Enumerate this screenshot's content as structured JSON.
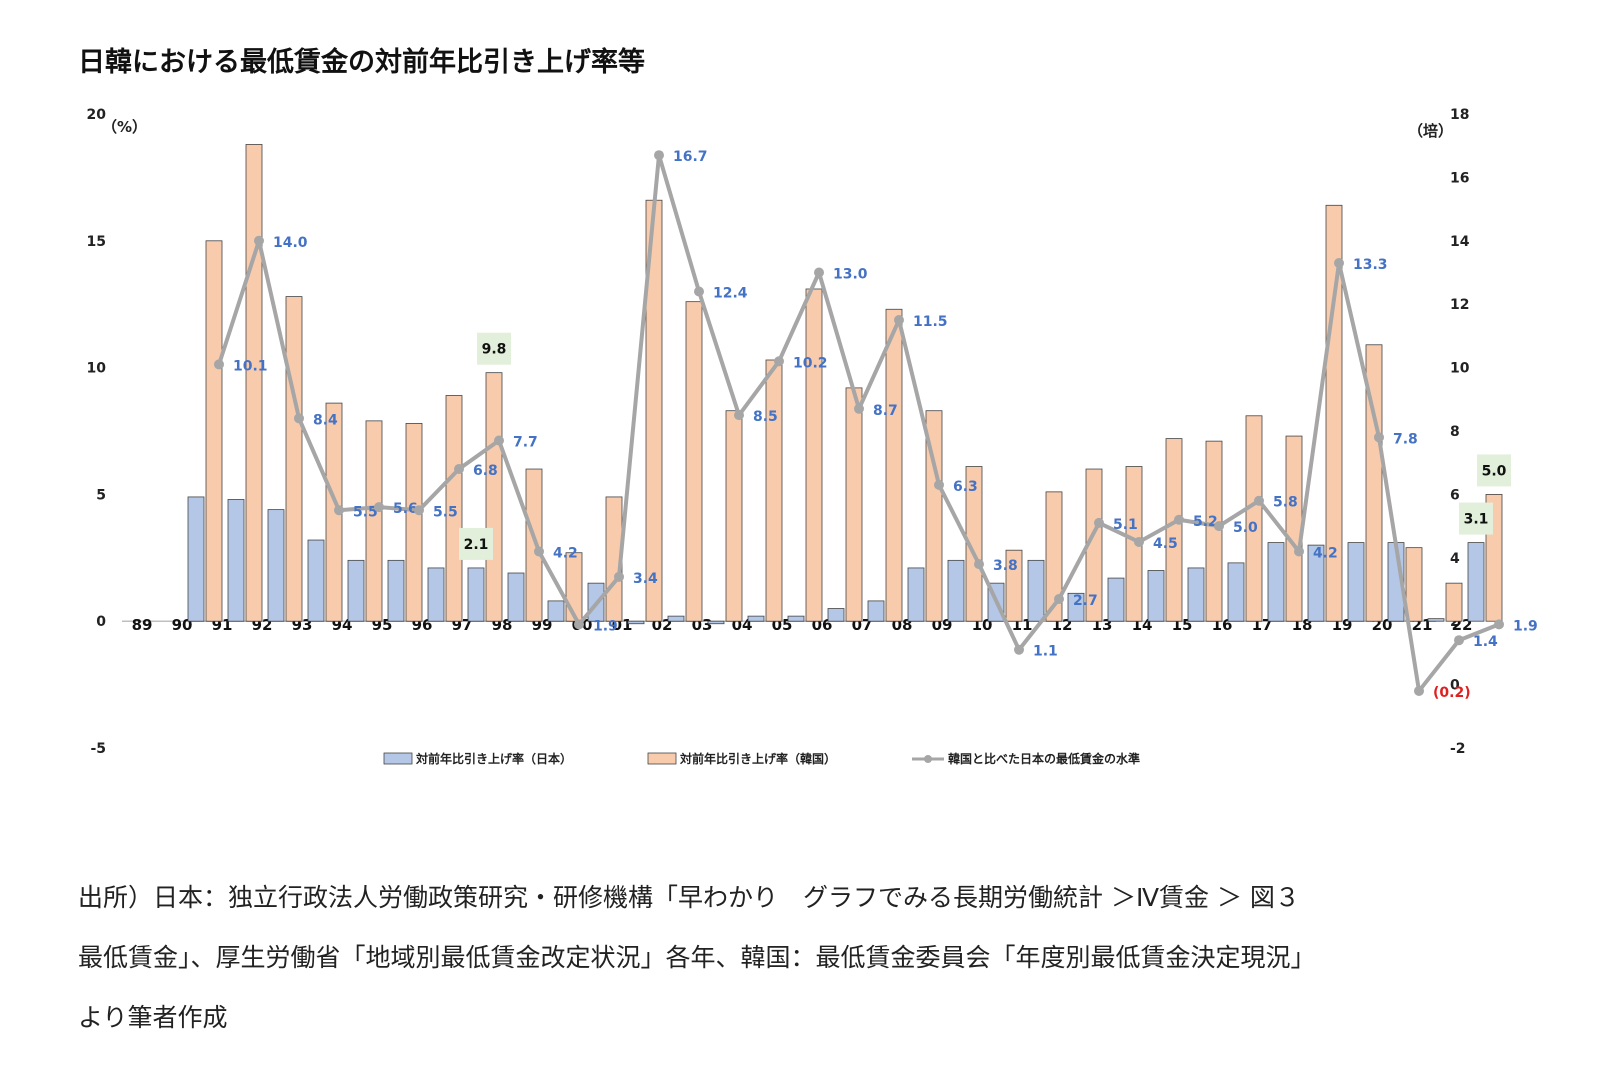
{
  "title": "日韓における最低賃金の対前年比引き上げ率等",
  "source_lines": [
    "出所）日本：独立行政法人労働政策研究・研修機構「早わかり　グラフでみる長期労働統計 ＞Ⅳ賃金 ＞ 図３",
    "最低賃金」、厚生労働省「地域別最低賃金改定状況」各年、韓国：最低賃金委員会「年度別最低賃金決定現況」",
    "より筆者作成"
  ],
  "chart_data": {
    "type": "bar",
    "categories": [
      "89",
      "90",
      "91",
      "92",
      "93",
      "94",
      "95",
      "96",
      "97",
      "98",
      "99",
      "00",
      "01",
      "02",
      "03",
      "04",
      "05",
      "06",
      "07",
      "08",
      "09",
      "10",
      "11",
      "12",
      "13",
      "14",
      "15",
      "16",
      "17",
      "18",
      "19",
      "20",
      "21",
      "22"
    ],
    "y_left": {
      "unit": "（%）",
      "ticks": [
        20,
        15,
        10,
        5,
        0,
        -5
      ],
      "range": [
        -5,
        20
      ]
    },
    "y_right": {
      "unit": "（培）",
      "ticks": [
        18,
        16,
        14,
        12,
        10,
        8,
        6,
        4,
        2,
        0,
        -2
      ],
      "range": [
        -2,
        18
      ]
    },
    "series": [
      {
        "name": "対前年比引き上げ率（日本）",
        "axis": "left",
        "color": "#b4c7e7",
        "values": [
          null,
          4.9,
          4.8,
          4.4,
          3.2,
          2.4,
          2.4,
          2.1,
          2.1,
          1.9,
          0.8,
          1.5,
          -0.1,
          0.2,
          -0.1,
          0.2,
          0.2,
          0.5,
          0.8,
          2.1,
          2.4,
          1.5,
          2.4,
          1.1,
          1.7,
          2.0,
          2.1,
          2.3,
          3.1,
          3.0,
          3.1,
          3.1,
          0.1,
          3.1
        ]
      },
      {
        "name": "対前年比引き上げ率（韓国）",
        "axis": "left",
        "color": "#f8cbad",
        "values": [
          null,
          15.0,
          18.8,
          12.8,
          8.6,
          7.9,
          7.8,
          8.9,
          9.8,
          6.0,
          2.7,
          4.9,
          16.6,
          12.6,
          8.3,
          10.3,
          13.1,
          9.2,
          12.3,
          8.3,
          6.1,
          2.8,
          5.1,
          6.0,
          6.1,
          7.2,
          7.1,
          8.1,
          7.3,
          16.4,
          10.9,
          2.9,
          1.5,
          5.0
        ]
      },
      {
        "name": "韓国と比べた日本の最低賃金の水準",
        "axis": "right",
        "color": "#a6a6a6",
        "values": [
          null,
          10.1,
          14.0,
          8.4,
          5.5,
          5.6,
          5.5,
          6.8,
          7.7,
          4.2,
          1.9,
          3.4,
          16.7,
          12.4,
          8.5,
          10.2,
          13.0,
          8.7,
          11.5,
          6.3,
          3.8,
          1.1,
          2.7,
          5.1,
          4.5,
          5.2,
          5.0,
          5.8,
          4.2,
          13.3,
          7.8,
          -0.2,
          1.4,
          1.9
        ],
        "labels": [
          null,
          "10.1",
          "14.0",
          "8.4",
          "5.5",
          "5.6",
          "5.5",
          "6.8",
          "7.7",
          "4.2",
          "1.9",
          "3.4",
          "16.7",
          "12.4",
          "8.5",
          "10.2",
          "13.0",
          "8.7",
          "11.5",
          "6.3",
          "3.8",
          "1.1",
          "2.7",
          "5.1",
          "4.5",
          "5.2",
          "5.0",
          "5.8",
          "4.2",
          "13.3",
          "7.8",
          "(0.2)",
          "1.4",
          "1.9"
        ]
      }
    ],
    "highlight_labels": [
      {
        "category": "97",
        "series": "対前年比引き上げ率（韓国）",
        "text": "9.8"
      },
      {
        "category": "97",
        "series": "対前年比引き上げ率（日本）",
        "text": "2.1"
      },
      {
        "category": "22",
        "series": "対前年比引き上げ率（日本）",
        "text": "3.1"
      },
      {
        "category": "22",
        "series": "対前年比引き上げ率（韓国）",
        "text": "5.0"
      }
    ],
    "colors": {
      "highlight_box": "#e2efda",
      "negative_label": "#e02020",
      "data_label": "#4472c4"
    },
    "legend": "bottom",
    "grid": false
  }
}
